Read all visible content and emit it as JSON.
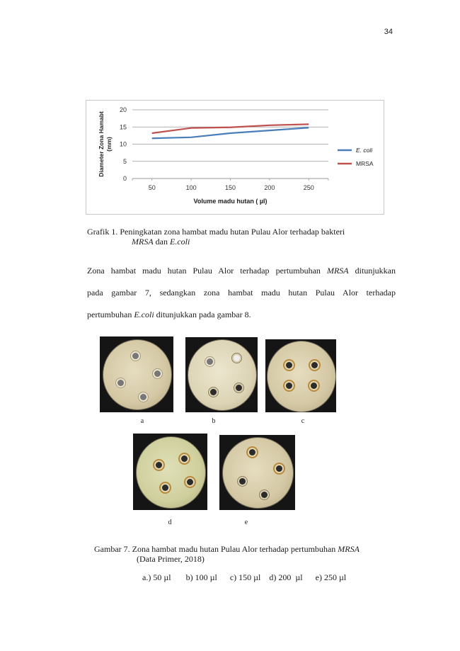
{
  "page_number": "34",
  "chart_data": {
    "type": "line",
    "x": [
      50,
      100,
      150,
      200,
      250
    ],
    "xlabel": "Volume madu hutan ( µl)",
    "ylabel": "Diameter Zona Hamabt (mm)",
    "ylim": [
      0,
      20
    ],
    "yticks": [
      0,
      5,
      10,
      15,
      20
    ],
    "grid": true,
    "legend_position": "right",
    "series": [
      {
        "name": "E. coli",
        "values": [
          11.7,
          12.0,
          13.2,
          14.0,
          14.8
        ],
        "color": "#4a7ebb"
      },
      {
        "name": "MRSA",
        "values": [
          13.2,
          14.7,
          14.9,
          15.5,
          15.8
        ],
        "color": "#c0504d"
      }
    ]
  },
  "figure_caption": {
    "prefix": "Grafik 1. Peningkatan zona hambat  madu hutan Pulau Alor  terhadap bakteri",
    "line2_italic_1": "MRSA",
    "line2_mid": " dan ",
    "line2_italic_2": "E.coli"
  },
  "paragraph": {
    "l1_a": "  Zona hambat madu hutan Pulau Alor  terhadap pertumbuhan ",
    "l1_i": "MRSA",
    "l1_b": " ditunjukkan",
    "l2": "pada gambar 7, sedangkan zona hambat madu hutan Pulau Alor  terhadap",
    "l3_a": "pertumbuhan ",
    "l3_i": "E.coli",
    "l3_b": "  ditunjukkan pada gambar 8."
  },
  "plates": [
    {
      "label": "a"
    },
    {
      "label": "b"
    },
    {
      "label": "c"
    },
    {
      "label": "d"
    },
    {
      "label": "e"
    }
  ],
  "gambar_caption": {
    "line1_a": "Gambar 7. Zona hambat madu hutan Pulau Alor  terhadap pertumbuhan ",
    "line1_i": "MRSA",
    "line2": "(Data Primer, 2018)"
  },
  "doses": "a.) 50 µl       b) 100 µl      c) 150 µl    d) 200  µl      e) 250 µl"
}
